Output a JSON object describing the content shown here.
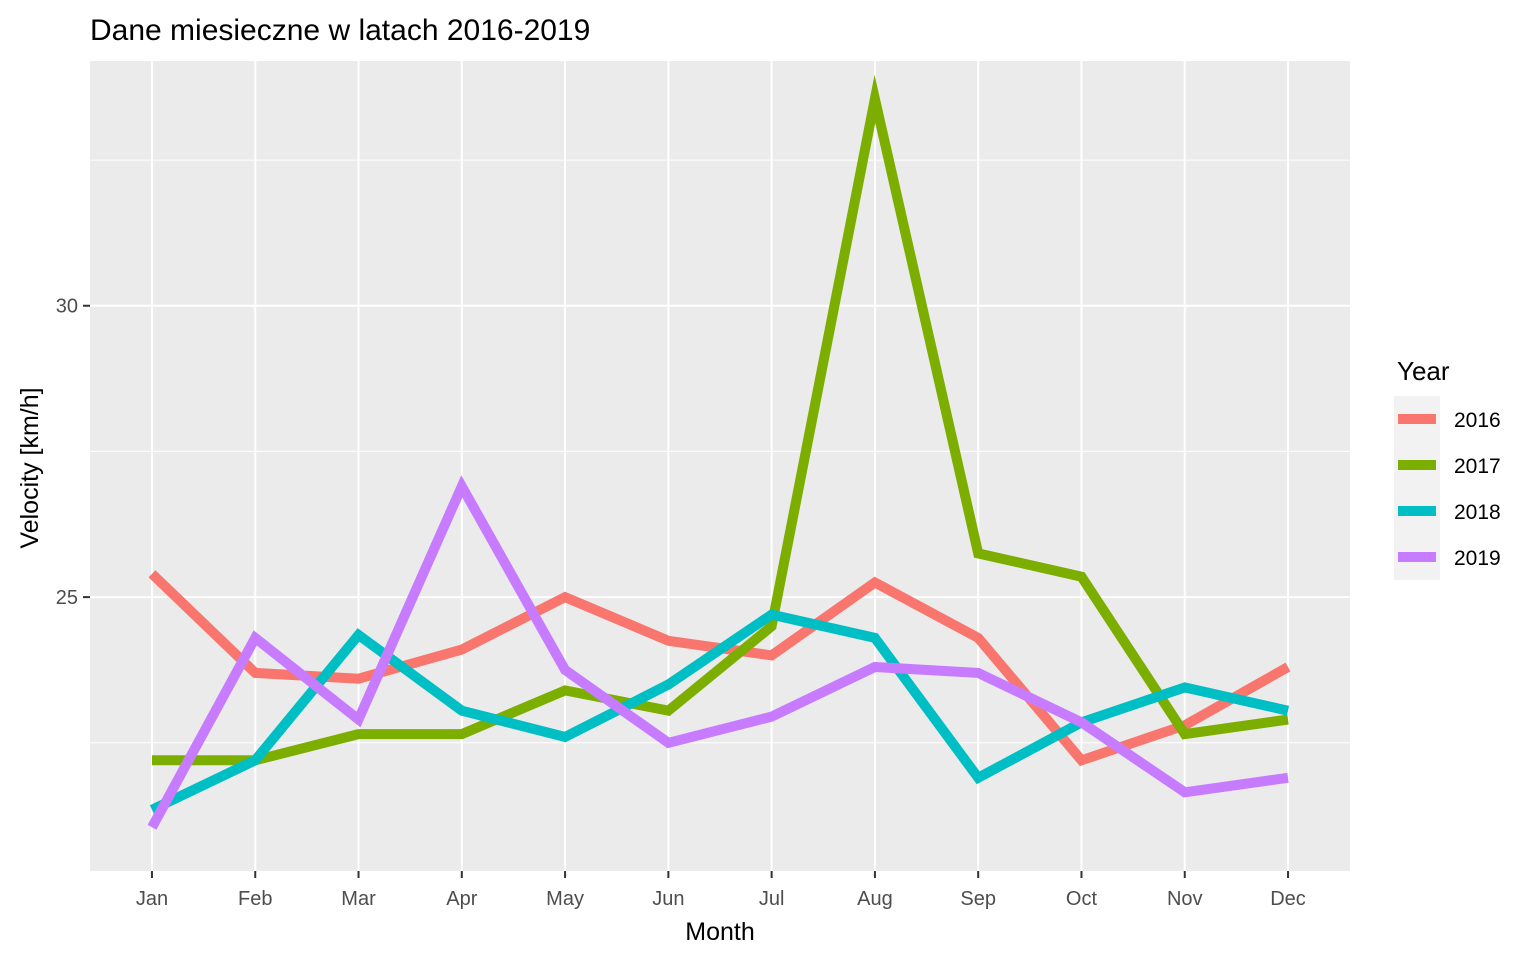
{
  "chart_data": {
    "type": "line",
    "title": "Dane miesieczne w latach 2016-2019",
    "xlabel": "Month",
    "ylabel": "Velocity [km/h]",
    "categories": [
      "Jan",
      "Feb",
      "Mar",
      "Apr",
      "May",
      "Jun",
      "Jul",
      "Aug",
      "Sep",
      "Oct",
      "Nov",
      "Dec"
    ],
    "ylim": [
      20.3,
      34.2
    ],
    "yticks": [
      25,
      30
    ],
    "grid": true,
    "panel_background": "#ebebeb",
    "legend": {
      "title": "Year",
      "position": "right",
      "background": "#f2f2f2"
    },
    "series": [
      {
        "name": "2016",
        "color": "#f8766d",
        "values": [
          25.4,
          23.7,
          23.6,
          24.1,
          25.0,
          24.25,
          24.0,
          25.25,
          24.3,
          22.2,
          22.8,
          23.8
        ]
      },
      {
        "name": "2017",
        "color": "#7cae00",
        "values": [
          22.2,
          22.2,
          22.65,
          22.65,
          23.4,
          23.05,
          24.5,
          33.55,
          25.75,
          25.35,
          22.65,
          22.9
        ]
      },
      {
        "name": "2018",
        "color": "#00bfc4",
        "values": [
          21.35,
          22.2,
          24.35,
          23.05,
          22.6,
          23.5,
          24.7,
          24.3,
          21.9,
          22.85,
          23.45,
          23.05
        ]
      },
      {
        "name": "2019",
        "color": "#c77cff",
        "values": [
          21.05,
          24.3,
          22.9,
          26.9,
          23.75,
          22.5,
          22.95,
          23.8,
          23.7,
          22.85,
          21.65,
          21.9
        ]
      }
    ]
  }
}
